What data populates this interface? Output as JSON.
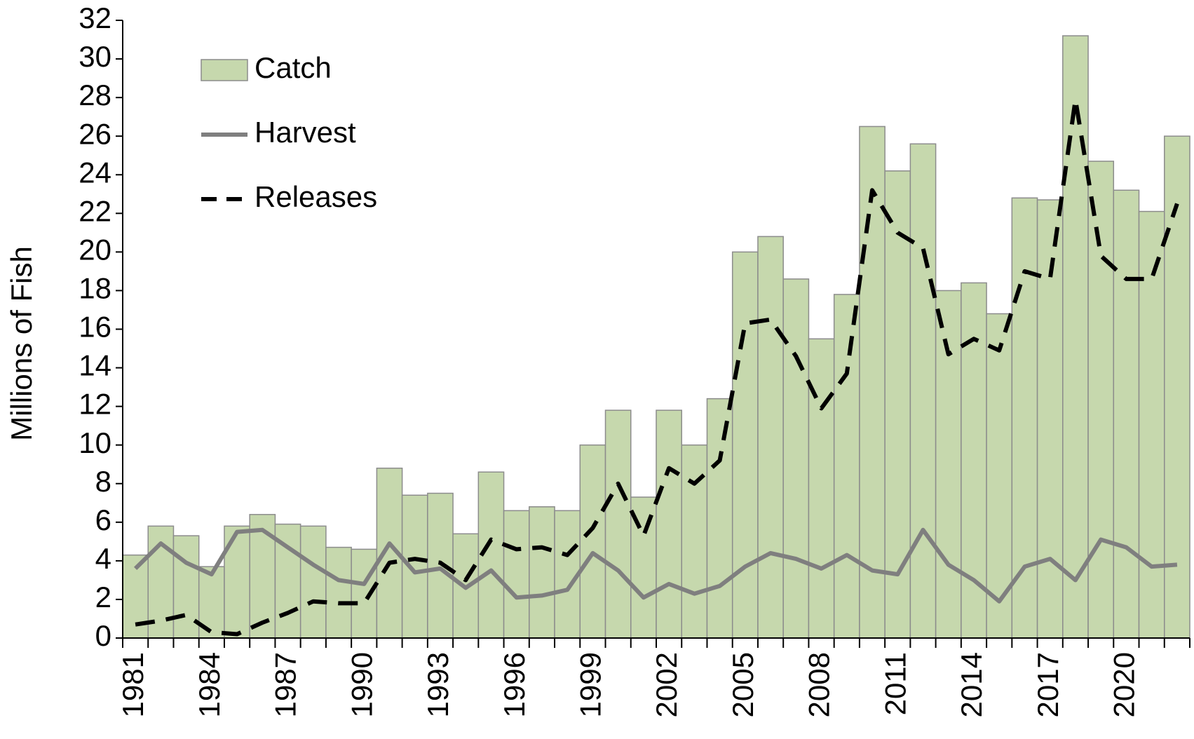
{
  "chart_data": {
    "type": "bar",
    "ylabel": "Millions of Fish",
    "categories": [
      "1981",
      null,
      null,
      "1984",
      null,
      null,
      "1987",
      null,
      null,
      "1990",
      null,
      null,
      "1993",
      null,
      null,
      "1996",
      null,
      null,
      "1999",
      null,
      null,
      "2002",
      null,
      null,
      "2005",
      null,
      null,
      "2008",
      null,
      null,
      "2011",
      null,
      null,
      "2014",
      null,
      null,
      "2017",
      null,
      null,
      "2020",
      null,
      null
    ],
    "series": [
      {
        "name": "Catch",
        "type": "bar",
        "color": "#c6d8ad",
        "edge_color": "#8c8c8c",
        "values": [
          4.3,
          5.8,
          5.3,
          3.7,
          5.8,
          6.4,
          5.9,
          5.8,
          4.7,
          4.6,
          8.8,
          7.4,
          7.5,
          5.4,
          8.6,
          6.6,
          6.8,
          6.6,
          10.0,
          11.8,
          7.3,
          11.8,
          10.0,
          12.4,
          20.0,
          20.8,
          18.6,
          15.5,
          17.8,
          26.5,
          24.2,
          25.6,
          18.0,
          18.4,
          16.8,
          22.8,
          22.7,
          31.2,
          24.7,
          23.2,
          22.1,
          26.0
        ]
      },
      {
        "name": "Harvest",
        "type": "line",
        "color": "#7f7f7f",
        "line_style": "solid",
        "values": [
          3.6,
          4.9,
          3.9,
          3.3,
          5.5,
          5.6,
          4.7,
          3.8,
          3.0,
          2.8,
          4.9,
          3.4,
          3.6,
          2.6,
          3.5,
          2.1,
          2.2,
          2.5,
          4.4,
          3.5,
          2.1,
          2.8,
          2.3,
          2.7,
          3.7,
          4.4,
          4.1,
          3.6,
          4.3,
          3.5,
          3.3,
          5.6,
          3.8,
          3.0,
          1.9,
          3.7,
          4.1,
          3.0,
          5.1,
          4.7,
          3.7,
          3.8
        ]
      },
      {
        "name": "Releases",
        "type": "line",
        "color": "#000000",
        "line_style": "dashed",
        "values": [
          0.7,
          0.9,
          1.2,
          0.3,
          0.2,
          0.8,
          1.3,
          1.9,
          1.8,
          1.8,
          3.9,
          4.1,
          3.9,
          3.0,
          5.1,
          4.6,
          4.7,
          4.3,
          5.7,
          8.0,
          5.3,
          8.8,
          8.0,
          9.2,
          16.3,
          16.5,
          14.6,
          11.9,
          13.7,
          23.2,
          21.0,
          20.2,
          14.7,
          15.5,
          14.9,
          19.0,
          18.6,
          27.9,
          19.8,
          18.6,
          18.6,
          22.5
        ]
      }
    ],
    "ylim": [
      0,
      32
    ],
    "yticks": [
      0,
      2,
      4,
      6,
      8,
      10,
      12,
      14,
      16,
      18,
      20,
      22,
      24,
      26,
      28,
      30,
      32
    ],
    "grid": false,
    "legend": "upper left"
  }
}
